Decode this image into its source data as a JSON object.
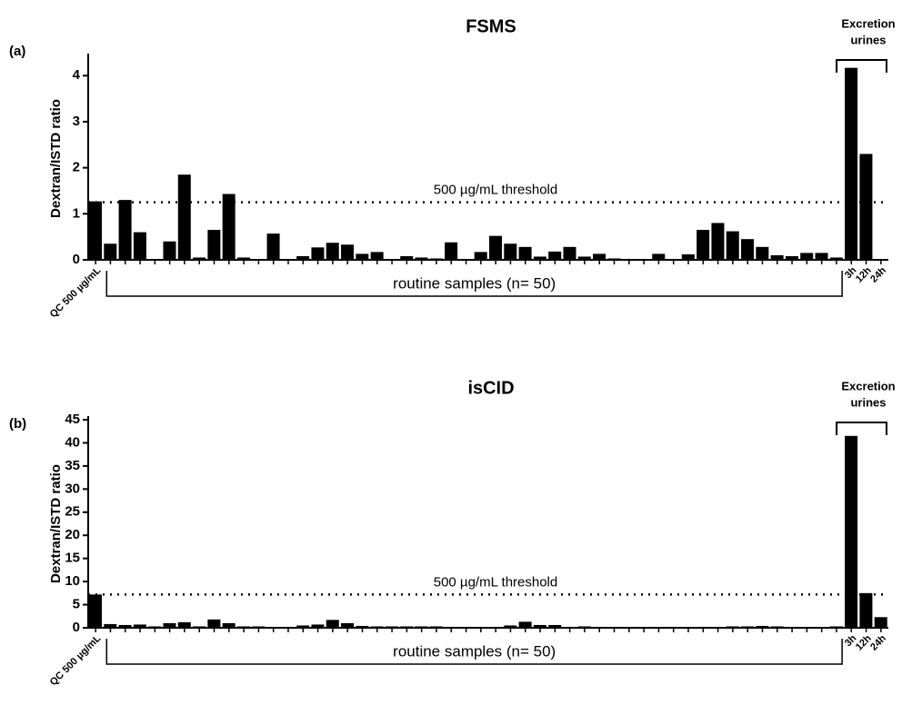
{
  "chart_data": [
    {
      "type": "bar",
      "panel_label": "(a)",
      "title": "FSMS",
      "ylabel": "Dextran/ISTD ratio",
      "color": "#000000",
      "categories": [
        "QC 500 µg/mL",
        null,
        null,
        null,
        null,
        null,
        null,
        null,
        null,
        null,
        null,
        null,
        null,
        null,
        null,
        null,
        null,
        null,
        null,
        null,
        null,
        null,
        null,
        null,
        null,
        null,
        null,
        null,
        null,
        null,
        null,
        null,
        null,
        null,
        null,
        null,
        null,
        null,
        null,
        null,
        null,
        null,
        null,
        null,
        null,
        null,
        null,
        null,
        null,
        null,
        null,
        "3h",
        "12h",
        "24h"
      ],
      "values": [
        1.27,
        0.35,
        1.3,
        0.6,
        0.02,
        0.4,
        1.85,
        0.05,
        0.65,
        1.43,
        0.05,
        0,
        0.57,
        0,
        0.08,
        0.27,
        0.37,
        0.33,
        0.13,
        0.17,
        0,
        0.08,
        0.05,
        0.03,
        0.38,
        0,
        0.17,
        0.52,
        0.35,
        0.28,
        0.07,
        0.18,
        0.28,
        0.07,
        0.13,
        0.03,
        0.02,
        0,
        0.13,
        0,
        0.12,
        0.65,
        0.8,
        0.62,
        0.45,
        0.28,
        0.1,
        0.08,
        0.15,
        0.15,
        0.05,
        4.17,
        2.3,
        0
      ],
      "ylim": [
        0,
        4.4
      ],
      "yticks": [
        0,
        1,
        2,
        3,
        4
      ],
      "threshold": {
        "value": 1.25,
        "label": "500 µg/mL threshold"
      },
      "routine_label": "routine samples (n= 50)",
      "urine_label": [
        "Excretion",
        "urines"
      ]
    },
    {
      "type": "bar",
      "panel_label": "(b)",
      "title": "isCID",
      "ylabel": "Dextran/ISTD ratio",
      "color": "#000000",
      "categories": [
        "QC 500 µg/mL",
        null,
        null,
        null,
        null,
        null,
        null,
        null,
        null,
        null,
        null,
        null,
        null,
        null,
        null,
        null,
        null,
        null,
        null,
        null,
        null,
        null,
        null,
        null,
        null,
        null,
        null,
        null,
        null,
        null,
        null,
        null,
        null,
        null,
        null,
        null,
        null,
        null,
        null,
        null,
        null,
        null,
        null,
        null,
        null,
        null,
        null,
        null,
        null,
        null,
        null,
        "3h",
        "12h",
        "24h"
      ],
      "values": [
        7.2,
        0.8,
        0.6,
        0.7,
        0.3,
        1.0,
        1.2,
        0.3,
        1.8,
        1.0,
        0.3,
        0.3,
        0.2,
        0.2,
        0.5,
        0.7,
        1.7,
        1.0,
        0.4,
        0.3,
        0.3,
        0.3,
        0.3,
        0.3,
        0.2,
        0.2,
        0.1,
        0.1,
        0.5,
        1.3,
        0.6,
        0.6,
        0.2,
        0.3,
        0.2,
        0.2,
        0.1,
        0.1,
        0.1,
        0.2,
        0.1,
        0.2,
        0.1,
        0.3,
        0.3,
        0.4,
        0.3,
        0.2,
        0.1,
        0.1,
        0.3,
        41.5,
        7.5,
        2.3
      ],
      "ylim": [
        0,
        45
      ],
      "yticks": [
        0,
        5,
        10,
        15,
        20,
        25,
        30,
        35,
        40,
        45
      ],
      "threshold": {
        "value": 7.2,
        "label": "500 µg/mL threshold"
      },
      "routine_label": "routine samples (n= 50)",
      "urine_label": [
        "Excretion",
        "urines"
      ]
    }
  ]
}
